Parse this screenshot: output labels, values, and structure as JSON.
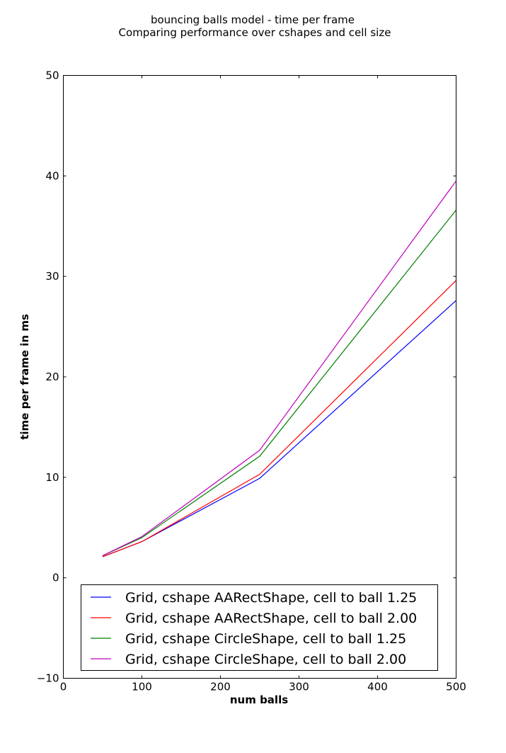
{
  "chart_data": {
    "type": "line",
    "title": "bouncing balls model - time per frame",
    "subtitle": "Comparing performance over cshapes and cell size",
    "xlabel": "num balls",
    "ylabel": "time per frame in ms",
    "xlim": [
      0,
      500
    ],
    "ylim": [
      -10,
      50
    ],
    "xticks": [
      0,
      100,
      200,
      300,
      400,
      500
    ],
    "yticks": [
      -10,
      0,
      10,
      20,
      30,
      40,
      50
    ],
    "grid": false,
    "legend_position": "lower-center",
    "x": [
      50,
      100,
      250,
      500
    ],
    "series": [
      {
        "name": "Grid, cshape AARectShape, cell to ball 1.25",
        "color": "#0000ff",
        "values": [
          2.1,
          3.6,
          9.9,
          27.6
        ]
      },
      {
        "name": "Grid, cshape AARectShape, cell to ball 2.00",
        "color": "#ff0000",
        "values": [
          2.1,
          3.6,
          10.3,
          29.6
        ]
      },
      {
        "name": "Grid, cshape CircleShape, cell to ball 1.25",
        "color": "#008000",
        "values": [
          2.2,
          4.0,
          12.1,
          36.6
        ]
      },
      {
        "name": "Grid, cshape CircleShape, cell to ball 2.00",
        "color": "#bf00bf",
        "values": [
          2.2,
          4.1,
          12.7,
          39.5
        ]
      }
    ]
  }
}
